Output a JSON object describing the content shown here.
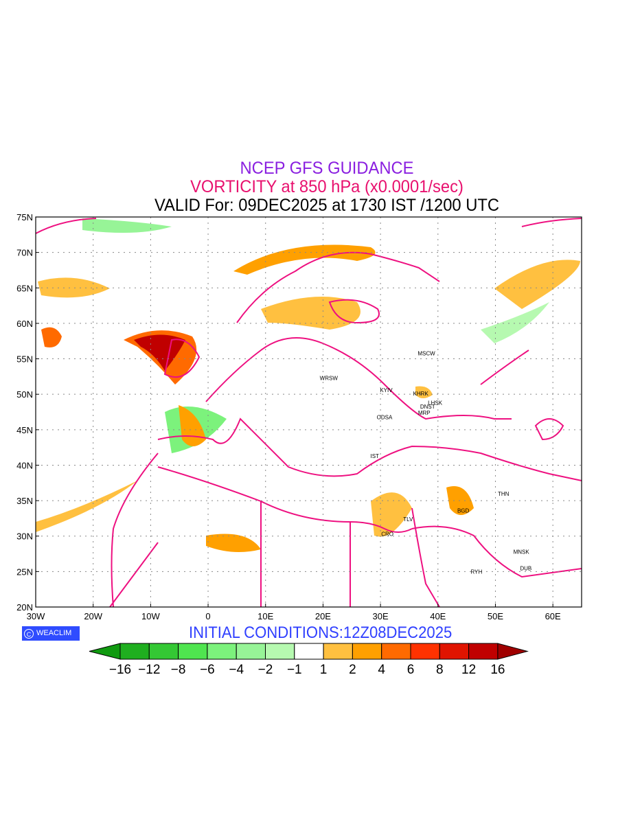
{
  "title": {
    "line1": "NCEP GFS GUIDANCE",
    "line2": "VORTICITY at 850 hPa (x0.0001/sec)",
    "line3": "VALID For: 09DEC2025 at 1730 IST /1200 UTC"
  },
  "axes": {
    "lat_labels": [
      "75N",
      "70N",
      "65N",
      "60N",
      "55N",
      "50N",
      "45N",
      "40N",
      "35N",
      "30N",
      "25N",
      "20N"
    ],
    "lon_labels": [
      "30W",
      "20W",
      "10W",
      "0",
      "10E",
      "20E",
      "30E",
      "40E",
      "50E",
      "60E"
    ]
  },
  "cities": [
    {
      "name": "MSCW",
      "lon": 38,
      "lat": 55.5
    },
    {
      "name": "WRSW",
      "lon": 21,
      "lat": 52
    },
    {
      "name": "KYIV",
      "lon": 31,
      "lat": 50.3
    },
    {
      "name": "KHRK",
      "lon": 37,
      "lat": 49.8
    },
    {
      "name": "LHSK",
      "lon": 39.5,
      "lat": 48.5
    },
    {
      "name": "DNST",
      "lon": 38.2,
      "lat": 48
    },
    {
      "name": "MRP",
      "lon": 37.6,
      "lat": 47.1
    },
    {
      "name": "ODSA",
      "lon": 30.7,
      "lat": 46.5
    },
    {
      "name": "IST",
      "lon": 29,
      "lat": 41
    },
    {
      "name": "THN",
      "lon": 51.4,
      "lat": 35.7
    },
    {
      "name": "BGD",
      "lon": 44.4,
      "lat": 33.3
    },
    {
      "name": "TLV",
      "lon": 34.8,
      "lat": 32.1
    },
    {
      "name": "CRO",
      "lon": 31.2,
      "lat": 30
    },
    {
      "name": "MNSK",
      "lon": 54.5,
      "lat": 27.5
    },
    {
      "name": "DUB",
      "lon": 55.3,
      "lat": 25.2
    },
    {
      "name": "RYH",
      "lon": 46.7,
      "lat": 24.7
    }
  ],
  "credit": {
    "icon": "copyright-icon",
    "label": "WEACLIM"
  },
  "initial_conditions": "INITIAL CONDITIONS:12Z08DEC2025",
  "colorbar": {
    "labels": [
      "−16",
      "−12",
      "−8",
      "−6",
      "−4",
      "−2",
      "−1",
      "1",
      "2",
      "4",
      "6",
      "8",
      "12",
      "16"
    ],
    "colors": [
      "#1faf1f",
      "#34c834",
      "#4fe54f",
      "#7cf27c",
      "#97f497",
      "#b6f9b0",
      "#ffffff",
      "#ffc040",
      "#ffa000",
      "#ff6a00",
      "#ff3200",
      "#e01400",
      "#c00000"
    ],
    "under_color": "#109a10",
    "over_color": "#a00000"
  }
}
